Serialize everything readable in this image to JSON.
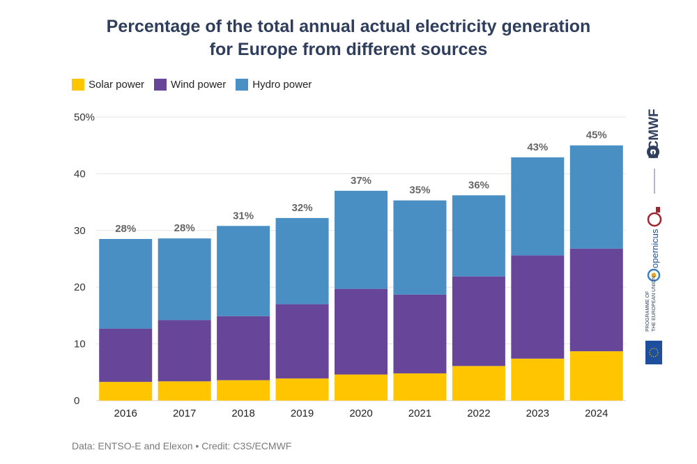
{
  "title_line1": "Percentage of the total annual actual electricity generation",
  "title_line2": "for Europe from different sources",
  "credit": "Data: ENTSO-E and Elexon • Credit: C3S/ECMWF",
  "brand": {
    "ecmwf": "ECMWF",
    "copernicus": "opernicus",
    "programme": "PROGRAMME OF",
    "eu": "THE EUROPEAN UNION"
  },
  "colors": {
    "solar": "#ffc600",
    "wind": "#674599",
    "hydro": "#4a8fc3",
    "grid": "#e3e3e3",
    "label": "#666666"
  },
  "chart_data": {
    "type": "bar",
    "stacked": true,
    "categories": [
      "2016",
      "2017",
      "2018",
      "2019",
      "2020",
      "2021",
      "2022",
      "2023",
      "2024"
    ],
    "series": [
      {
        "name": "Solar power",
        "values": [
          3.3,
          3.4,
          3.6,
          3.9,
          4.6,
          4.8,
          6.1,
          7.4,
          8.7
        ]
      },
      {
        "name": "Wind power",
        "values": [
          9.4,
          10.8,
          11.3,
          13.1,
          15.1,
          13.9,
          15.8,
          18.2,
          18.1
        ]
      },
      {
        "name": "Hydro power",
        "values": [
          15.8,
          14.4,
          15.9,
          15.2,
          17.3,
          16.6,
          14.3,
          17.3,
          18.2
        ]
      }
    ],
    "total_labels": [
      "28%",
      "28%",
      "31%",
      "32%",
      "37%",
      "35%",
      "36%",
      "43%",
      "45%"
    ],
    "y_ticks": [
      "0",
      "10",
      "20",
      "30",
      "40",
      "50%"
    ],
    "ylim": [
      0,
      50
    ],
    "grid": true,
    "legend_position": "top-left"
  }
}
